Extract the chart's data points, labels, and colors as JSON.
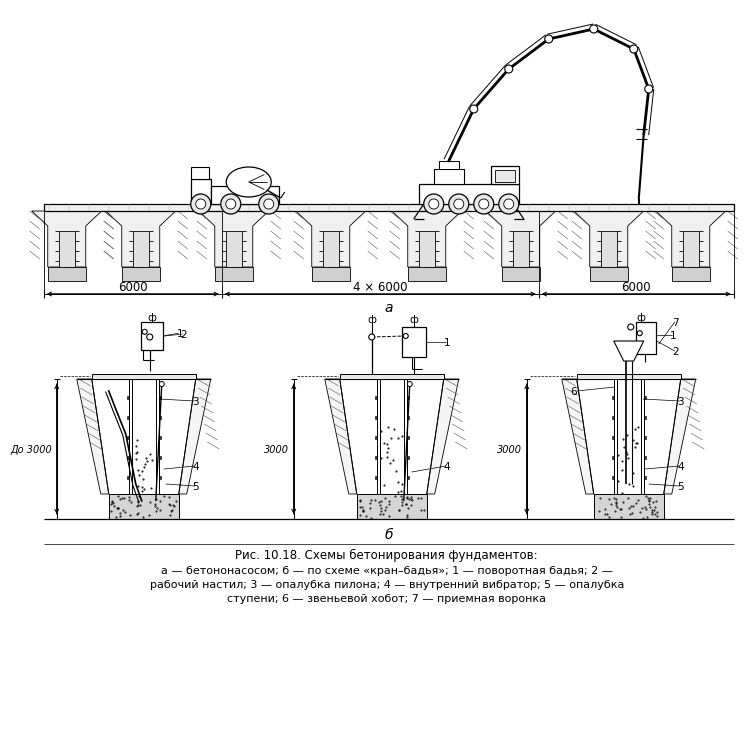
{
  "title": "Рис. 10.18. Схемы бетонирования фундаментов:",
  "cap1": "а — бетононасосом; б — по схеме «кран–бадья»; 1 — поворотная бадья; 2 —",
  "cap2": "рабочий настил; 3 — опалубка пилона; 4 — внутренний вибратор; 5 — опалубка",
  "cap3": "ступени; 6 — звеньевой хобот; 7 — приемная воронка",
  "la": "а",
  "lb": "б",
  "d6000": "6000",
  "d4x6000": "4 × 6000",
  "d6000r": "6000",
  "ddo3000": "До 3000",
  "d3000m": "3000",
  "d3000r": "3000"
}
